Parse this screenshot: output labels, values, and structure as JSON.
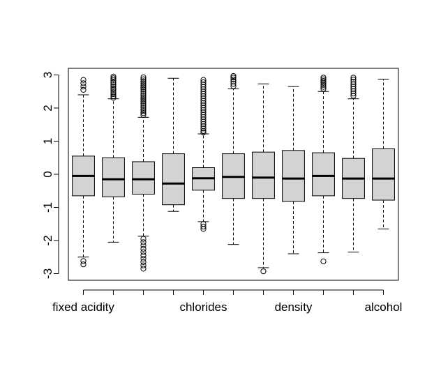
{
  "chart_data": {
    "type": "boxplot",
    "title": "",
    "xlabel": "",
    "ylabel": "",
    "ylim": [
      -3.2,
      3.2
    ],
    "y_ticks": [
      -3,
      -2,
      -1,
      0,
      1,
      2,
      3
    ],
    "y_tick_labels": [
      "-3",
      "-2",
      "-1",
      "0",
      "1",
      "2",
      "3"
    ],
    "category_labels": [
      "fixed acidity",
      "",
      "",
      "",
      "chlorides",
      "",
      "",
      "density",
      "",
      "",
      "alcohol"
    ],
    "colors": {
      "box_fill": "#d3d3d3",
      "line": "#000000"
    },
    "boxes": [
      {
        "q1": -0.65,
        "median": -0.05,
        "q3": 0.55,
        "whisker_low": -2.5,
        "whisker_high": 2.4,
        "outliers": [
          2.85,
          2.75,
          2.65,
          2.55,
          -2.62,
          -2.72
        ]
      },
      {
        "q1": -0.68,
        "median": -0.15,
        "q3": 0.5,
        "whisker_low": -2.05,
        "whisker_high": 2.28,
        "outliers": [
          2.95,
          2.9,
          2.85,
          2.78,
          2.72,
          2.66,
          2.6,
          2.55,
          2.48,
          2.42,
          2.36,
          2.31
        ]
      },
      {
        "q1": -0.6,
        "median": -0.15,
        "q3": 0.38,
        "whisker_low": -1.87,
        "whisker_high": 1.72,
        "outliers": [
          2.93,
          2.87,
          2.81,
          2.75,
          2.69,
          2.63,
          2.57,
          2.51,
          2.45,
          2.39,
          2.33,
          2.27,
          2.21,
          2.15,
          2.09,
          2.03,
          1.97,
          1.91,
          1.85,
          1.79,
          -1.95,
          -2.05,
          -2.15,
          -2.25,
          -2.35,
          -2.45,
          -2.55,
          -2.65,
          -2.75,
          -2.85
        ]
      },
      {
        "q1": -0.92,
        "median": -0.28,
        "q3": 0.62,
        "whisker_low": -1.12,
        "whisker_high": 2.9,
        "outliers": []
      },
      {
        "q1": -0.48,
        "median": -0.12,
        "q3": 0.2,
        "whisker_low": -1.43,
        "whisker_high": 1.22,
        "outliers": [
          2.85,
          2.78,
          2.71,
          2.64,
          2.57,
          2.5,
          2.43,
          2.36,
          2.29,
          2.22,
          2.15,
          2.08,
          2.01,
          1.94,
          1.87,
          1.8,
          1.73,
          1.66,
          1.59,
          1.52,
          1.45,
          1.38,
          1.31,
          1.26,
          -1.5,
          -1.58,
          -1.65
        ]
      },
      {
        "q1": -0.73,
        "median": -0.08,
        "q3": 0.62,
        "whisker_low": -2.12,
        "whisker_high": 2.58,
        "outliers": [
          2.97,
          2.92,
          2.86,
          2.8,
          2.73,
          2.66
        ]
      },
      {
        "q1": -0.73,
        "median": -0.1,
        "q3": 0.67,
        "whisker_low": -2.82,
        "whisker_high": 2.73,
        "outliers": [
          -2.93
        ]
      },
      {
        "q1": -0.82,
        "median": -0.13,
        "q3": 0.72,
        "whisker_low": -2.4,
        "whisker_high": 2.65,
        "outliers": []
      },
      {
        "q1": -0.65,
        "median": -0.05,
        "q3": 0.65,
        "whisker_low": -2.37,
        "whisker_high": 2.5,
        "outliers": [
          2.92,
          2.87,
          2.82,
          2.76,
          2.7,
          2.64,
          2.58,
          -2.63
        ]
      },
      {
        "q1": -0.73,
        "median": -0.13,
        "q3": 0.48,
        "whisker_low": -2.35,
        "whisker_high": 2.28,
        "outliers": [
          2.92,
          2.86,
          2.79,
          2.72,
          2.65,
          2.58,
          2.51,
          2.44,
          2.37
        ]
      },
      {
        "q1": -0.78,
        "median": -0.13,
        "q3": 0.77,
        "whisker_low": -1.65,
        "whisker_high": 2.87,
        "outliers": []
      }
    ]
  }
}
